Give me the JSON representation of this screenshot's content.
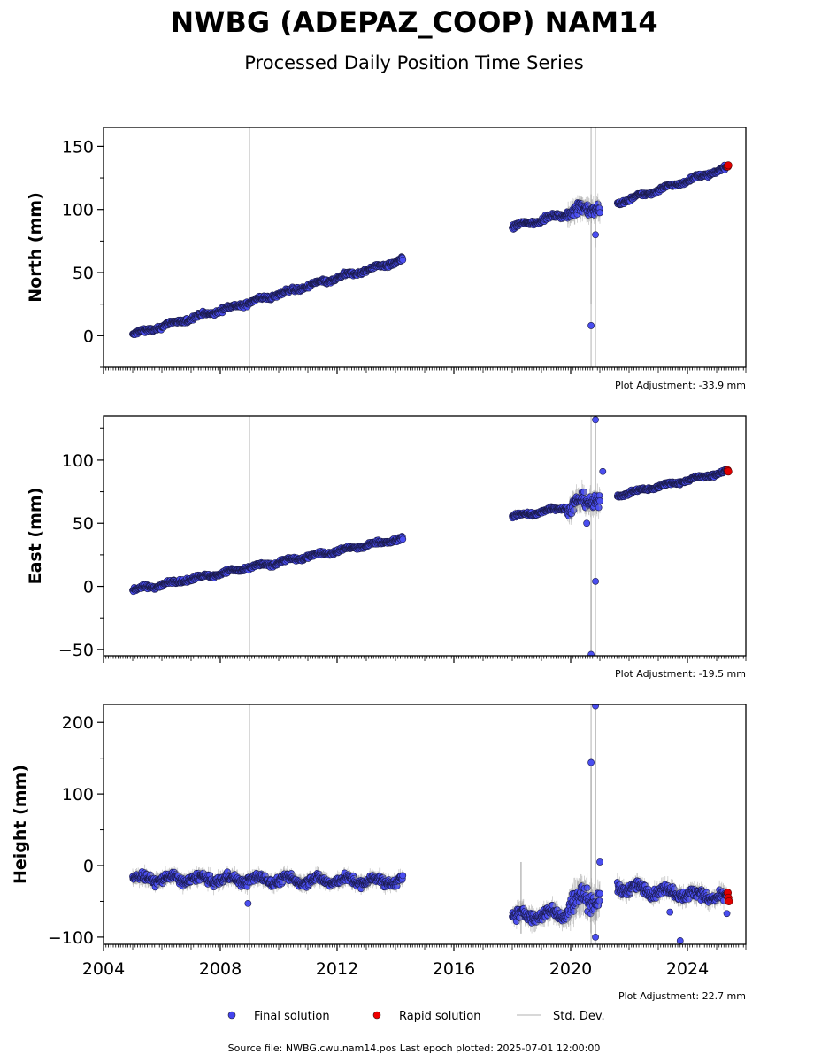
{
  "chart_data": {
    "type": "scatter",
    "title": "NWBG (ADEPAZ_COOP) NAM14",
    "subtitle": "Processed Daily Position Time Series",
    "xlim": [
      2004,
      2026
    ],
    "x_ticks": [
      2004,
      2008,
      2012,
      2016,
      2020,
      2024
    ],
    "x_tick_labels": [
      "2004",
      "2008",
      "2012",
      "2016",
      "2020",
      "2024"
    ],
    "vertical_lines": [
      2009.0,
      2020.7,
      2020.85
    ],
    "legend": {
      "placement": "bottom-center",
      "entries": [
        {
          "label": "Final solution",
          "color": "#4444ee",
          "marker": "circle"
        },
        {
          "label": "Rapid solution",
          "color": "#ee0000",
          "marker": "circle"
        },
        {
          "label": "Std. Dev.",
          "color": "#cccccc",
          "marker": "line"
        }
      ]
    },
    "colors": {
      "final": "#4a4ef0",
      "rapid": "#e00000",
      "stddev": "#c8c8c8",
      "edge": "#1a1a4a"
    },
    "source_text": "Source file: NWBG.cwu.nam14.pos  Last epoch plotted: 2025-07-01 12:00:00",
    "panels": [
      {
        "ylabel": "North (mm)",
        "ylim": [
          -25,
          165
        ],
        "y_ticks": [
          0,
          50,
          100,
          150
        ],
        "y_tick_labels": [
          "0",
          "50",
          "100",
          "150"
        ],
        "adjustment_text": "Plot Adjustment: -33.9 mm",
        "segments": [
          {
            "start": 2005.0,
            "end": 2014.25,
            "y_start": 1,
            "y_end": 60,
            "noise": 2.0
          },
          {
            "start": 2018.0,
            "end": 2019.9,
            "y_start": 86,
            "y_end": 97,
            "noise": 2.0
          },
          {
            "start": 2019.9,
            "end": 2021.0,
            "y_start": 97,
            "y_end": 103,
            "noise": 5.5
          },
          {
            "start": 2021.6,
            "end": 2025.35,
            "y_start": 105,
            "y_end": 133,
            "noise": 1.8
          }
        ],
        "outliers": [
          {
            "x": 2020.7,
            "y": 8
          },
          {
            "x": 2020.85,
            "y": 80
          }
        ],
        "rapid_points": [
          {
            "x": 2025.38,
            "y": 134
          },
          {
            "x": 2025.4,
            "y": 135
          }
        ],
        "stddev_spikes": [
          {
            "x": 2020.7,
            "y0": 25,
            "y1": 112
          },
          {
            "x": 2020.85,
            "y0": 70,
            "y1": 108
          }
        ]
      },
      {
        "ylabel": "East (mm)",
        "ylim": [
          -55,
          135
        ],
        "y_ticks": [
          -50,
          0,
          50,
          100
        ],
        "y_tick_labels": [
          "−50",
          "0",
          "50",
          "100"
        ],
        "adjustment_text": "Plot Adjustment: -19.5 mm",
        "segments": [
          {
            "start": 2005.0,
            "end": 2014.25,
            "y_start": -3,
            "y_end": 38,
            "noise": 1.8
          },
          {
            "start": 2018.0,
            "end": 2019.9,
            "y_start": 55,
            "y_end": 63,
            "noise": 2.0
          },
          {
            "start": 2019.9,
            "end": 2021.0,
            "y_start": 62,
            "y_end": 71,
            "noise": 6.0
          },
          {
            "start": 2021.6,
            "end": 2025.35,
            "y_start": 72,
            "y_end": 91,
            "noise": 1.5
          }
        ],
        "outliers": [
          {
            "x": 2020.85,
            "y": 132
          },
          {
            "x": 2021.1,
            "y": 91
          },
          {
            "x": 2020.85,
            "y": 4
          },
          {
            "x": 2020.7,
            "y": -54
          },
          {
            "x": 2020.55,
            "y": 50
          }
        ],
        "rapid_points": [
          {
            "x": 2025.38,
            "y": 92
          },
          {
            "x": 2025.4,
            "y": 91
          }
        ],
        "stddev_spikes": [
          {
            "x": 2020.7,
            "y0": -54,
            "y1": 37
          },
          {
            "x": 2020.85,
            "y0": 60,
            "y1": 130
          }
        ]
      },
      {
        "ylabel": "Height (mm)",
        "ylim": [
          -110,
          225
        ],
        "y_ticks": [
          -100,
          0,
          100,
          200
        ],
        "y_tick_labels": [
          "−100",
          "0",
          "100",
          "200"
        ],
        "adjustment_text": "Plot Adjustment: 22.7 mm",
        "segments": [
          {
            "start": 2005.0,
            "end": 2014.25,
            "y_start": -18,
            "y_end": -22,
            "noise": 7.0
          },
          {
            "start": 2018.0,
            "end": 2019.9,
            "y_start": -72,
            "y_end": -66,
            "noise": 9.0
          },
          {
            "start": 2019.9,
            "end": 2021.0,
            "y_start": -55,
            "y_end": -40,
            "noise": 16.0
          },
          {
            "start": 2021.6,
            "end": 2025.35,
            "y_start": -30,
            "y_end": -45,
            "noise": 8.0
          }
        ],
        "outliers": [
          {
            "x": 2020.85,
            "y": 223
          },
          {
            "x": 2020.7,
            "y": 144
          },
          {
            "x": 2020.85,
            "y": -100
          },
          {
            "x": 2023.75,
            "y": -105
          },
          {
            "x": 2023.4,
            "y": -65
          },
          {
            "x": 2025.35,
            "y": -67
          },
          {
            "x": 2021.0,
            "y": 5
          },
          {
            "x": 2008.95,
            "y": -53
          }
        ],
        "rapid_points": [
          {
            "x": 2025.38,
            "y": -38
          },
          {
            "x": 2025.4,
            "y": -45
          },
          {
            "x": 2025.42,
            "y": -50
          }
        ],
        "stddev_spikes": [
          {
            "x": 2020.7,
            "y0": -95,
            "y1": 150
          },
          {
            "x": 2020.85,
            "y0": -100,
            "y1": 225
          },
          {
            "x": 2018.3,
            "y0": -95,
            "y1": 5
          }
        ]
      }
    ]
  }
}
